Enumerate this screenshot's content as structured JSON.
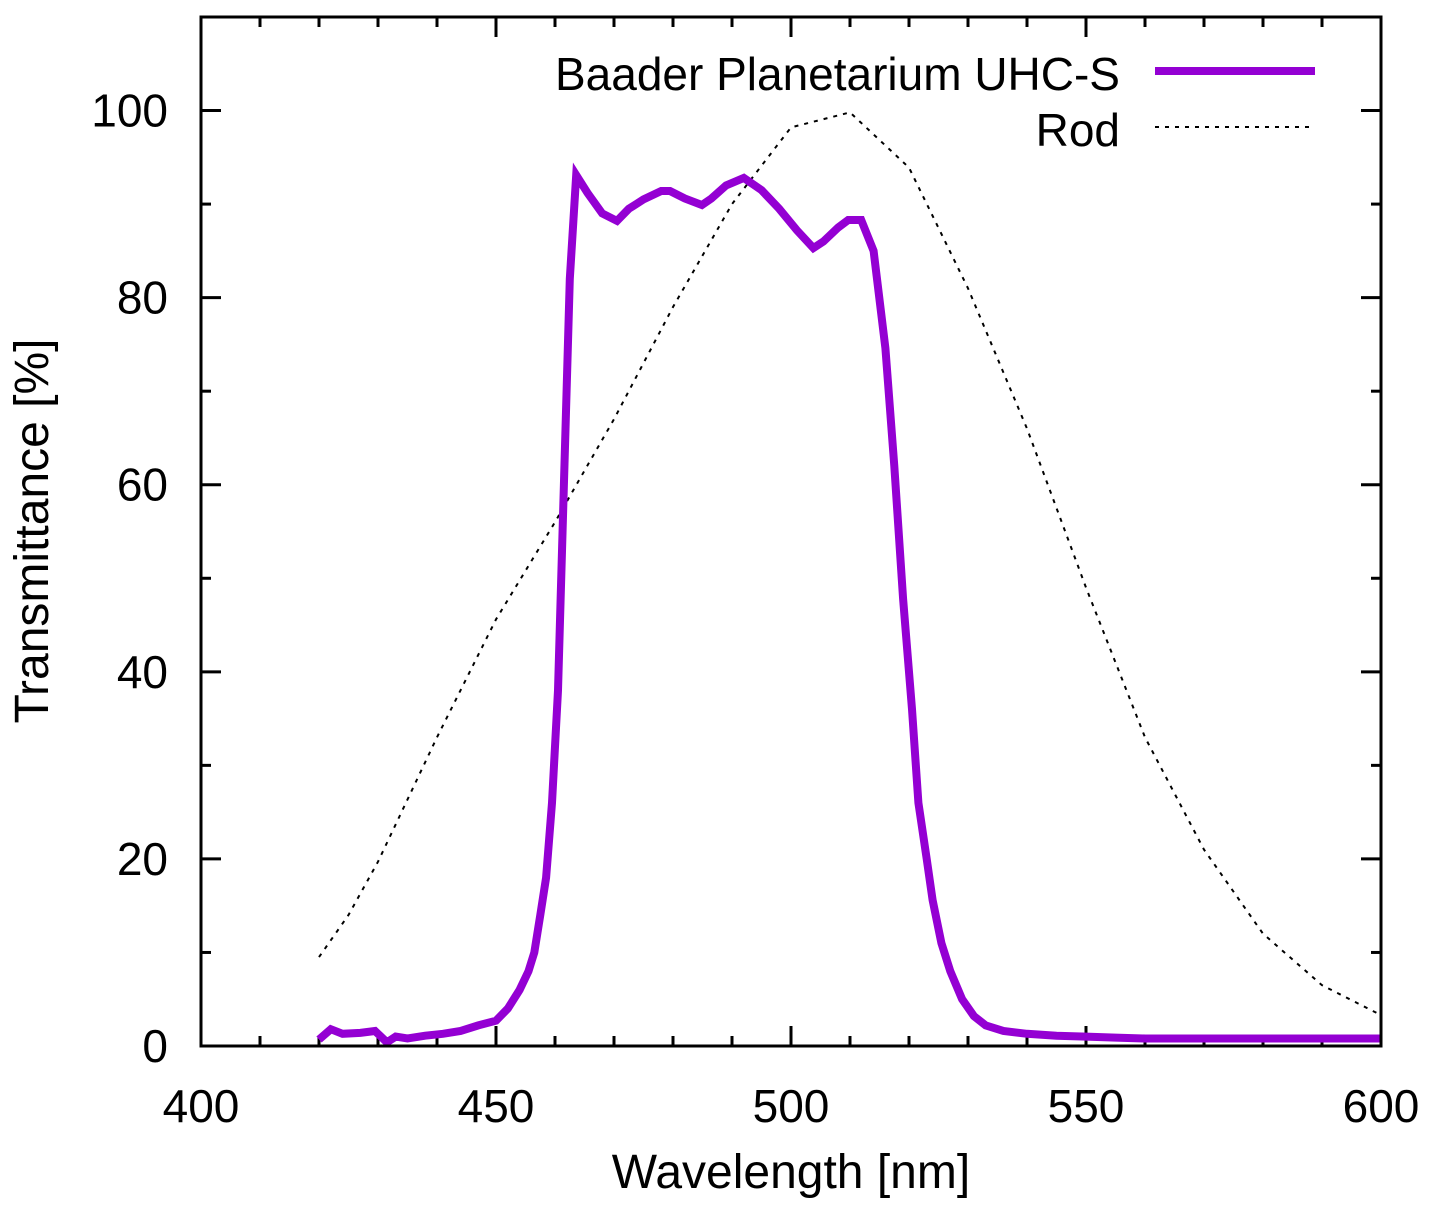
{
  "chart_data": {
    "type": "line",
    "title": "",
    "xlabel": "Wavelength [nm]",
    "ylabel": "Transmittance [%]",
    "xlim": [
      400,
      600
    ],
    "ylim": [
      0,
      110
    ],
    "xticks": [
      400,
      450,
      500,
      550,
      600
    ],
    "xtick_labels": [
      "400",
      "450",
      "500",
      "550",
      "600"
    ],
    "yticks": [
      0,
      20,
      40,
      60,
      80,
      100
    ],
    "ytick_labels": [
      "0",
      "20",
      "40",
      "60",
      "80",
      "100"
    ],
    "grid": false,
    "legend_position": "top-right",
    "series": [
      {
        "name": "Baader Planetarium UHC-S",
        "color": "#9400d3",
        "style": "solid",
        "x": [
          420,
          422,
          424,
          427,
          429.5,
          431.5,
          433,
          435,
          438,
          441,
          444,
          447,
          450,
          452,
          454,
          455.5,
          456.5,
          457.5,
          458.5,
          459.5,
          460.5,
          461.5,
          462.5,
          463.6,
          465.5,
          468,
          470.5,
          472.5,
          475,
          478,
          479.5,
          482,
          484.9,
          486.5,
          489,
          492,
          495,
          498,
          501,
          503.8,
          505.5,
          508,
          509.7,
          511.9,
          514,
          516,
          517.5,
          519,
          520.5,
          521.6,
          523,
          524,
          525.5,
          527,
          529,
          531,
          533,
          536,
          540,
          545,
          550,
          555,
          560,
          570,
          580,
          590,
          600
        ],
        "values": [
          0.7,
          1.8,
          1.3,
          1.4,
          1.6,
          0.4,
          1.0,
          0.8,
          1.1,
          1.3,
          1.6,
          2.2,
          2.7,
          4,
          6,
          8,
          10,
          14,
          18,
          26,
          38,
          60,
          82,
          93.1,
          91.2,
          89,
          88.2,
          89.5,
          90.5,
          91.4,
          91.4,
          90.6,
          89.9,
          90.6,
          92,
          92.8,
          91.5,
          89.5,
          87.2,
          85.3,
          86,
          87.5,
          88.3,
          88.3,
          85,
          74.6,
          62,
          47.8,
          36,
          26,
          20,
          15.6,
          11,
          8,
          5,
          3.2,
          2.2,
          1.6,
          1.3,
          1.1,
          1.0,
          0.9,
          0.8,
          0.8,
          0.8,
          0.8,
          0.8
        ]
      },
      {
        "name": "Rod",
        "color": "#000000",
        "style": "dotted",
        "x": [
          420,
          425,
          430,
          440,
          450,
          460,
          470,
          480,
          490,
          500,
          510,
          520,
          530,
          540,
          550,
          560,
          570,
          580,
          590,
          600
        ],
        "values": [
          9.5,
          14,
          19.7,
          33,
          45.6,
          56,
          67,
          79,
          90,
          98.2,
          99.8,
          93.9,
          81,
          66,
          49,
          33,
          21,
          12,
          6.5,
          3.3
        ]
      }
    ]
  }
}
